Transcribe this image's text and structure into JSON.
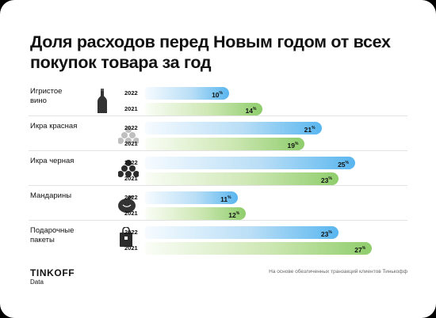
{
  "title": "Доля расходов перед Новым годом от всех покупок товара за год",
  "chart_data": {
    "type": "bar",
    "orientation": "horizontal",
    "title": "Доля расходов перед Новым годом от всех покупок товара за год",
    "categories": [
      "Игристое вино",
      "Икра красная",
      "Икра черная",
      "Мандарины",
      "Подарочные пакеты"
    ],
    "series": [
      {
        "name": "2022",
        "values": [
          10,
          21,
          25,
          11,
          23
        ],
        "color": "#59b6ef"
      },
      {
        "name": "2021",
        "values": [
          14,
          19,
          23,
          12,
          27
        ],
        "color": "#8fcd6c"
      }
    ],
    "value_suffix": "%",
    "xlim": [
      0,
      28
    ],
    "grid": false,
    "legend": "none"
  },
  "icons": [
    "bottle-icon",
    "red-caviar-icon",
    "black-caviar-icon",
    "tangerine-icon",
    "gift-bag-icon"
  ],
  "brand": {
    "name": "TINKOFF",
    "sub": "Data"
  },
  "footnote": "На основе обезличенных транзакций клиентов Тинькофф"
}
